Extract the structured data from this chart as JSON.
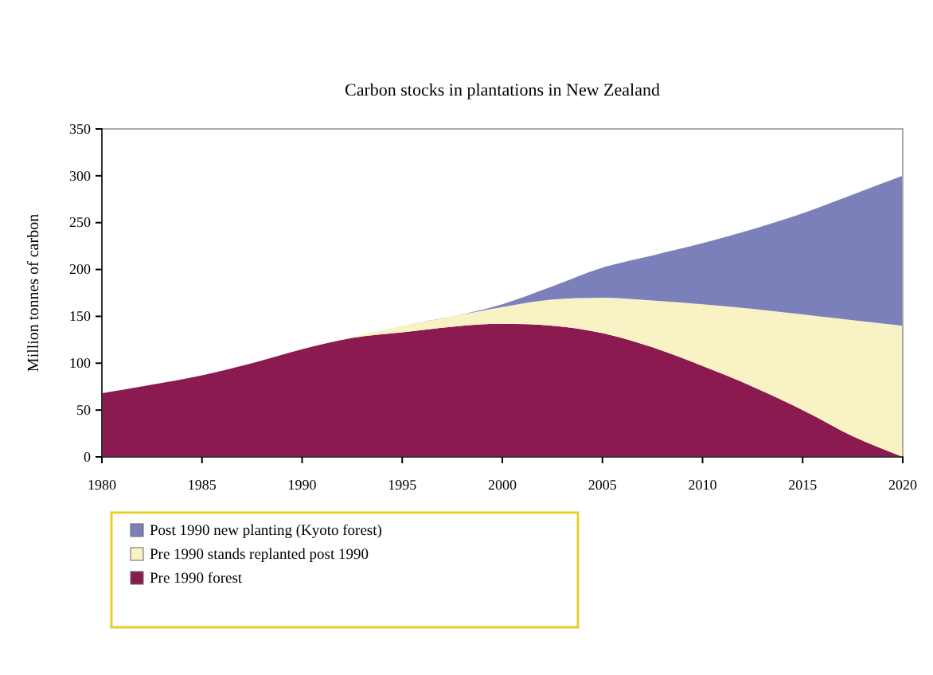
{
  "chart_data": {
    "type": "area",
    "stacked": true,
    "title": "Carbon stocks in plantations in New Zealand",
    "ylabel": "Million tonnes of carbon",
    "x": [
      1980,
      1982.5,
      1985,
      1987.5,
      1990,
      1992.5,
      1995,
      1997.5,
      2000,
      2002.5,
      2005,
      2007.5,
      2010,
      2012.5,
      2015,
      2017.5,
      2020
    ],
    "series": [
      {
        "name": "Pre 1990 forest",
        "color": "#8b1a50",
        "values": [
          68,
          77,
          87,
          100,
          115,
          127,
          133,
          139,
          142,
          140,
          132,
          117,
          97,
          75,
          50,
          22,
          0
        ]
      },
      {
        "name": "Pre 1990 stands replanted post 1990",
        "color": "#f8f2c4",
        "values": [
          0,
          0,
          0,
          0,
          0,
          1,
          7,
          11,
          18,
          28,
          38,
          50,
          66,
          83,
          102,
          124,
          140
        ]
      },
      {
        "name": "Post 1990 new planting (Kyoto forest)",
        "color": "#7b80bb",
        "values": [
          0,
          0,
          0,
          0,
          0,
          0,
          0,
          0,
          3,
          14,
          32,
          48,
          65,
          85,
          108,
          134,
          160
        ]
      }
    ],
    "xlim": [
      1980,
      2020
    ],
    "xticks": [
      1980,
      1985,
      1990,
      1995,
      2000,
      2005,
      2010,
      2015,
      2020
    ],
    "ylim": [
      0,
      350
    ],
    "yticks": [
      0,
      50,
      100,
      150,
      200,
      250,
      300,
      350
    ],
    "legend": "bottom left"
  }
}
